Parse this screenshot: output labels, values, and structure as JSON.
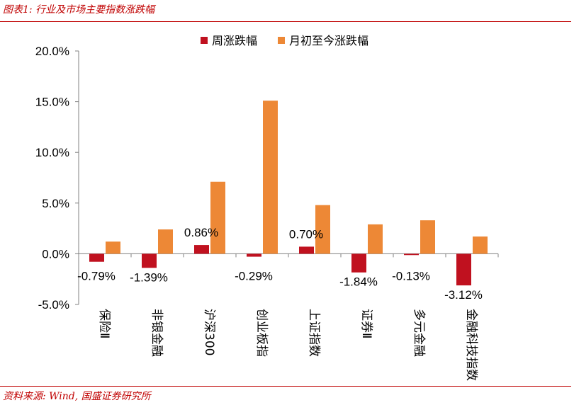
{
  "header": {
    "title": "图表1:  行业及市场主要指数涨跌幅"
  },
  "footer": {
    "source": "资料来源:  Wind,  国盛证券研究所"
  },
  "colors": {
    "weekly": "#c0111f",
    "monthly": "#ed8836",
    "rule": "#c00000"
  },
  "chart_data": {
    "type": "bar",
    "title": "",
    "xlabel": "",
    "ylabel": "",
    "ylim": [
      -5,
      20
    ],
    "ytick_step": 5,
    "yticks": [
      "-5.0%",
      "0.0%",
      "5.0%",
      "10.0%",
      "15.0%",
      "20.0%"
    ],
    "legend_position": "top",
    "grid": false,
    "categories": [
      "保险Ⅱ",
      "非银金融",
      "沪深300",
      "创业板指",
      "上证指数",
      "证券Ⅱ",
      "多元金融",
      "金融科技指数"
    ],
    "series": [
      {
        "name": "周涨跌幅",
        "values": [
          -0.79,
          -1.39,
          0.86,
          -0.29,
          0.7,
          -1.84,
          -0.13,
          -3.12
        ],
        "data_labels": [
          "-0.79%",
          "-1.39%",
          "0.86%",
          "-0.29%",
          "0.70%",
          "-1.84%",
          "-0.13%",
          "-3.12%"
        ]
      },
      {
        "name": "月初至今涨跌幅",
        "values": [
          1.2,
          2.4,
          7.1,
          15.1,
          4.8,
          2.9,
          3.3,
          1.7
        ]
      }
    ]
  }
}
